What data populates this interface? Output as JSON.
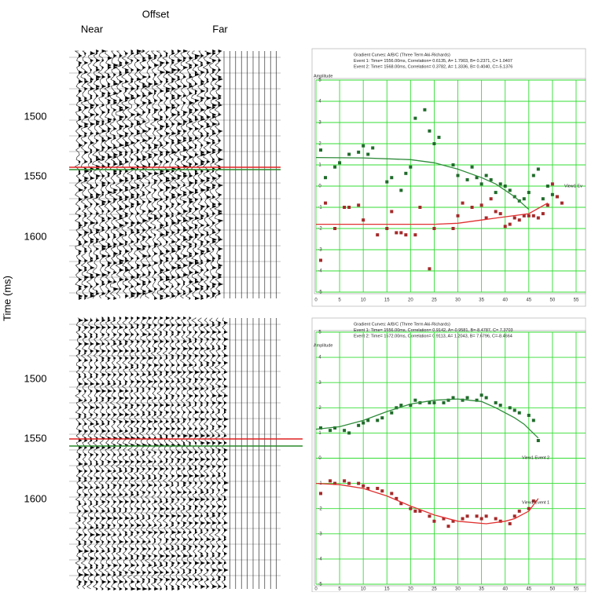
{
  "gathers": {
    "offset_label": "Offset",
    "near_label": "Near",
    "far_label": "Far",
    "time_axis_label": "Time (ms)",
    "panels": [
      {
        "time_ticks": [
          1500,
          1550,
          1600
        ]
      },
      {
        "time_ticks": [
          1500,
          1550,
          1600
        ]
      }
    ]
  },
  "chart_data": [
    {
      "type": "scatter",
      "title_lines": [
        "Gradient Curves: A/B/C (Three Term Aki-Richards)",
        "Event 1: Time= 1556.00ms, Correlation= 0.6135, A= 1.7903, B= 0.2371, C= 1.0407",
        "Event 2: Time= 1568.00ms, Correlation= 0.3782, A= 1.3336, B= 0.4040, C=-5.1376"
      ],
      "ylabel": "Amplitude",
      "xlim": [
        0,
        57
      ],
      "ylim": [
        -5,
        5
      ],
      "xticks": [
        0,
        5,
        10,
        15,
        20,
        25,
        30,
        35,
        40,
        45,
        50,
        55
      ],
      "yticks": [
        -5,
        -4,
        -3,
        -2,
        -1,
        0,
        1,
        2,
        3,
        4,
        5
      ],
      "grid": true,
      "grid_color": "#33dd33",
      "annotations": [
        "View1 Ev"
      ],
      "series": [
        {
          "kind": "points",
          "color": "#1f6b2a",
          "x": [
            1,
            2,
            4,
            5,
            7,
            9,
            10,
            11,
            12,
            15,
            16,
            18,
            19,
            20,
            21,
            23,
            24,
            25,
            26,
            29,
            30,
            32,
            33,
            34,
            35,
            36,
            37,
            38,
            39,
            40,
            41,
            42,
            43,
            44,
            45,
            46,
            47,
            48,
            49,
            50,
            51
          ],
          "values": [
            1.7,
            0.4,
            0.9,
            1.1,
            1.5,
            1.6,
            1.9,
            1.5,
            1.8,
            0.2,
            0.4,
            -0.2,
            0.6,
            0.9,
            3.2,
            3.6,
            2.6,
            2.0,
            2.3,
            1.0,
            0.5,
            0.3,
            0.9,
            0.4,
            0.1,
            0.5,
            0.3,
            -0.3,
            0.1,
            0.0,
            -0.2,
            -0.5,
            -0.7,
            -0.6,
            -0.3,
            0.5,
            0.8,
            -0.6,
            0.0,
            -0.4,
            -0.5
          ]
        },
        {
          "kind": "points",
          "color": "#a52a2a",
          "x": [
            1,
            2,
            4,
            6,
            7,
            9,
            10,
            13,
            15,
            16,
            17,
            18,
            19,
            21,
            22,
            24,
            25,
            29,
            30,
            31,
            33,
            35,
            36,
            37,
            38,
            39,
            40,
            41,
            42,
            43,
            44,
            45,
            46,
            47,
            48,
            49,
            50,
            51,
            52
          ],
          "values": [
            -3.5,
            -0.8,
            -2.0,
            -1.0,
            -1.0,
            -0.9,
            -1.6,
            -2.3,
            -2.0,
            -1.2,
            -2.2,
            -2.2,
            -2.3,
            -2.3,
            -1.0,
            -3.9,
            -2.0,
            -2.0,
            -1.4,
            -0.8,
            -1.0,
            -0.9,
            -1.5,
            -0.6,
            -1.2,
            -1.3,
            -1.9,
            -1.8,
            -1.5,
            -1.6,
            -1.4,
            -1.4,
            -1.4,
            -1.5,
            -1.3,
            -0.9,
            0.1,
            -0.5,
            -0.8
          ]
        },
        {
          "kind": "curve",
          "color": "#2e8b3a",
          "x": [
            0,
            10,
            20,
            25,
            30,
            35,
            38,
            42,
            45
          ],
          "values": [
            1.35,
            1.33,
            1.25,
            1.1,
            0.8,
            0.4,
            0.1,
            -0.5,
            -1.1
          ]
        },
        {
          "kind": "curve",
          "color": "#e03030",
          "x": [
            0,
            10,
            20,
            25,
            30,
            35,
            40,
            45,
            49
          ],
          "values": [
            -1.8,
            -1.8,
            -1.8,
            -1.8,
            -1.75,
            -1.6,
            -1.45,
            -1.3,
            -0.8
          ]
        }
      ]
    },
    {
      "type": "scatter",
      "title_lines": [
        "Gradient Curves: A/B/C (Three Term Aki-Richards)",
        "Event 1: Time= 1556.00ms, Correlation= 0.9142, A=-0.9581, B=-8.4787, C= 7.3703",
        "Event 2: Time= 1572.00ms, Correlation= 0.9113, A= 1.2043, B= 7.6796, C=-8.4664"
      ],
      "ylabel": "Amplitude",
      "xlim": [
        0,
        57
      ],
      "ylim": [
        -5,
        5
      ],
      "xticks": [
        0,
        5,
        10,
        15,
        20,
        25,
        30,
        35,
        40,
        45,
        50,
        55
      ],
      "yticks": [
        -5,
        -4,
        -3,
        -2,
        -1,
        0,
        1,
        2,
        3,
        4,
        5
      ],
      "grid": true,
      "grid_color": "#33dd33",
      "annotations": [
        "View1 Event 2",
        "View1 Event 1"
      ],
      "series": [
        {
          "kind": "points",
          "color": "#1f6b2a",
          "x": [
            1,
            3,
            4,
            6,
            7,
            9,
            10,
            11,
            13,
            14,
            16,
            17,
            18,
            20,
            21,
            22,
            24,
            25,
            27,
            28,
            29,
            31,
            32,
            34,
            35,
            36,
            38,
            39,
            41,
            42,
            43,
            45,
            46,
            47
          ],
          "values": [
            1.2,
            1.1,
            1.2,
            1.1,
            1.0,
            1.3,
            1.4,
            1.5,
            1.5,
            1.6,
            1.8,
            2.0,
            2.1,
            2.1,
            2.3,
            2.2,
            2.2,
            2.2,
            2.2,
            2.3,
            2.4,
            2.3,
            2.4,
            2.3,
            2.5,
            2.4,
            2.2,
            2.1,
            2.0,
            1.9,
            1.8,
            1.7,
            1.5,
            0.7
          ]
        },
        {
          "kind": "points",
          "color": "#a52a2a",
          "x": [
            1,
            3,
            4,
            6,
            7,
            9,
            10,
            11,
            13,
            14,
            16,
            17,
            18,
            20,
            21,
            22,
            24,
            25,
            27,
            28,
            29,
            31,
            32,
            34,
            35,
            36,
            38,
            39,
            41,
            42,
            43,
            45,
            46
          ],
          "values": [
            -1.4,
            -0.9,
            -1.0,
            -0.9,
            -1.0,
            -1.0,
            -1.1,
            -1.2,
            -1.2,
            -1.3,
            -1.4,
            -1.6,
            -1.8,
            -2.0,
            -2.1,
            -2.1,
            -2.3,
            -2.5,
            -2.4,
            -2.7,
            -2.5,
            -2.4,
            -2.3,
            -2.3,
            -2.4,
            -2.3,
            -2.4,
            -2.5,
            -2.6,
            -2.3,
            -2.1,
            -2.0,
            -1.7
          ]
        },
        {
          "kind": "curve",
          "color": "#2e8b3a",
          "x": [
            0,
            5,
            10,
            15,
            20,
            25,
            30,
            35,
            38,
            42,
            44,
            47
          ],
          "values": [
            1.15,
            1.25,
            1.5,
            1.85,
            2.15,
            2.3,
            2.35,
            2.25,
            2.0,
            1.6,
            1.35,
            0.8
          ]
        },
        {
          "kind": "curve",
          "color": "#e03030",
          "x": [
            0,
            5,
            10,
            15,
            20,
            25,
            30,
            36,
            40,
            42,
            45,
            47
          ],
          "values": [
            -1.0,
            -1.05,
            -1.2,
            -1.5,
            -1.9,
            -2.25,
            -2.5,
            -2.6,
            -2.5,
            -2.4,
            -2.1,
            -1.6
          ]
        }
      ]
    }
  ]
}
